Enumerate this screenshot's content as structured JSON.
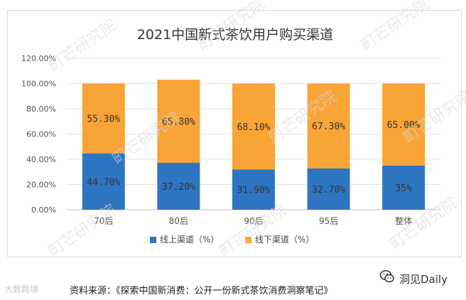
{
  "chart_data": {
    "type": "bar",
    "stacked": true,
    "title": "2021中国新式茶饮用户购买渠道",
    "categories": [
      "70后",
      "80后",
      "90后",
      "95后",
      "整体"
    ],
    "series": [
      {
        "name": "线上渠道（%）",
        "color": "#2e75c1",
        "values": [
          44.7,
          37.2,
          31.9,
          32.7,
          35
        ],
        "labels": [
          "44.70%",
          "37.20%",
          "31.90%",
          "32.70%",
          "35%"
        ]
      },
      {
        "name": "线下渠道（%）",
        "color": "#f9a436",
        "values": [
          55.3,
          65.8,
          68.1,
          67.3,
          65.0
        ],
        "labels": [
          "55.30%",
          "65.80%",
          "68.10%",
          "67.30%",
          "65.00%"
        ]
      }
    ],
    "ylim": [
      0,
      120
    ],
    "yticks": [
      0,
      20,
      40,
      60,
      80,
      100,
      120
    ],
    "ytick_labels": [
      "0.00%",
      "20.00%",
      "40.00%",
      "60.00%",
      "80.00%",
      "100.00%",
      "120.00%"
    ],
    "xlabel": "",
    "ylabel": "",
    "legend_position": "bottom",
    "grid": true
  },
  "watermark": {
    "text": "町芒研究院"
  },
  "footer": {
    "source": "资料来源：《探索中国新消费：公开一份新式茶饮消费洞察笔记》",
    "left_brand": "大数跨境",
    "right_brand": "洞见Daily",
    "wechat_icon": "wechat-icon"
  }
}
